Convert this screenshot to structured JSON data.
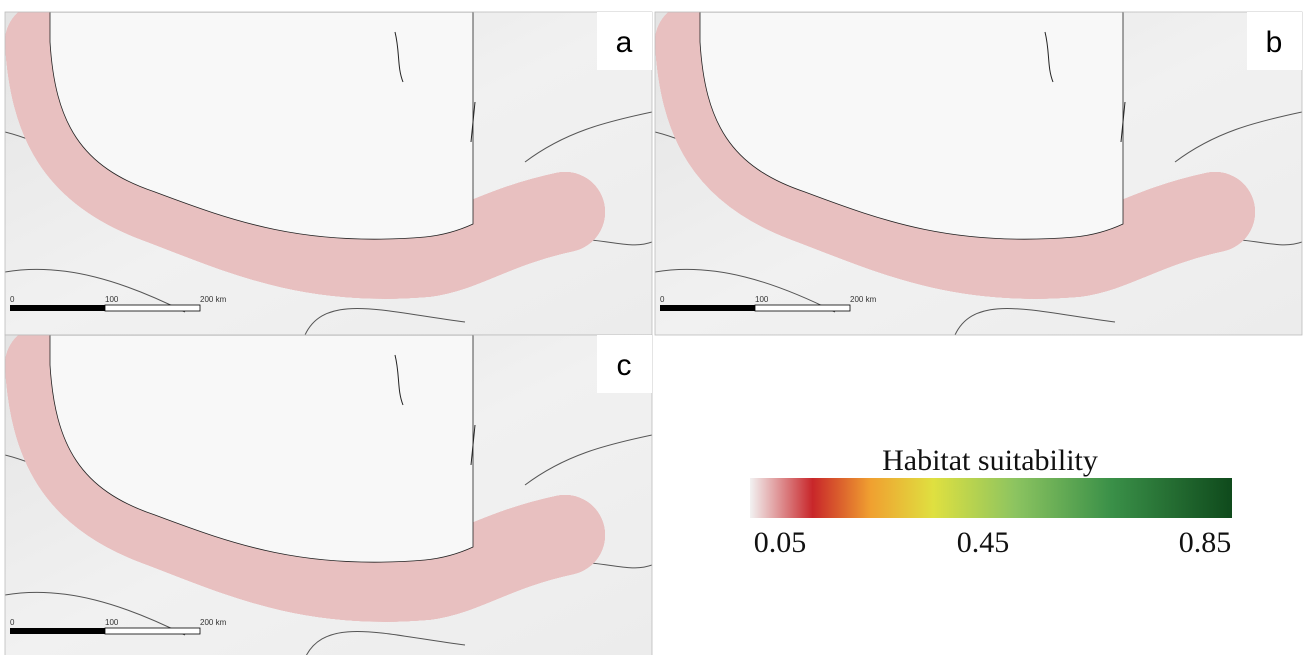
{
  "panels": [
    {
      "label": "a",
      "scale_labels": [
        "0",
        "100",
        "200 km"
      ]
    },
    {
      "label": "b",
      "scale_labels": [
        "0",
        "100",
        "200 km"
      ]
    },
    {
      "label": "c",
      "scale_labels": [
        "0",
        "100",
        "200 km"
      ]
    }
  ],
  "legend": {
    "title": "Habitat suitability",
    "ticks": [
      0.05,
      0.45,
      0.85
    ]
  }
}
